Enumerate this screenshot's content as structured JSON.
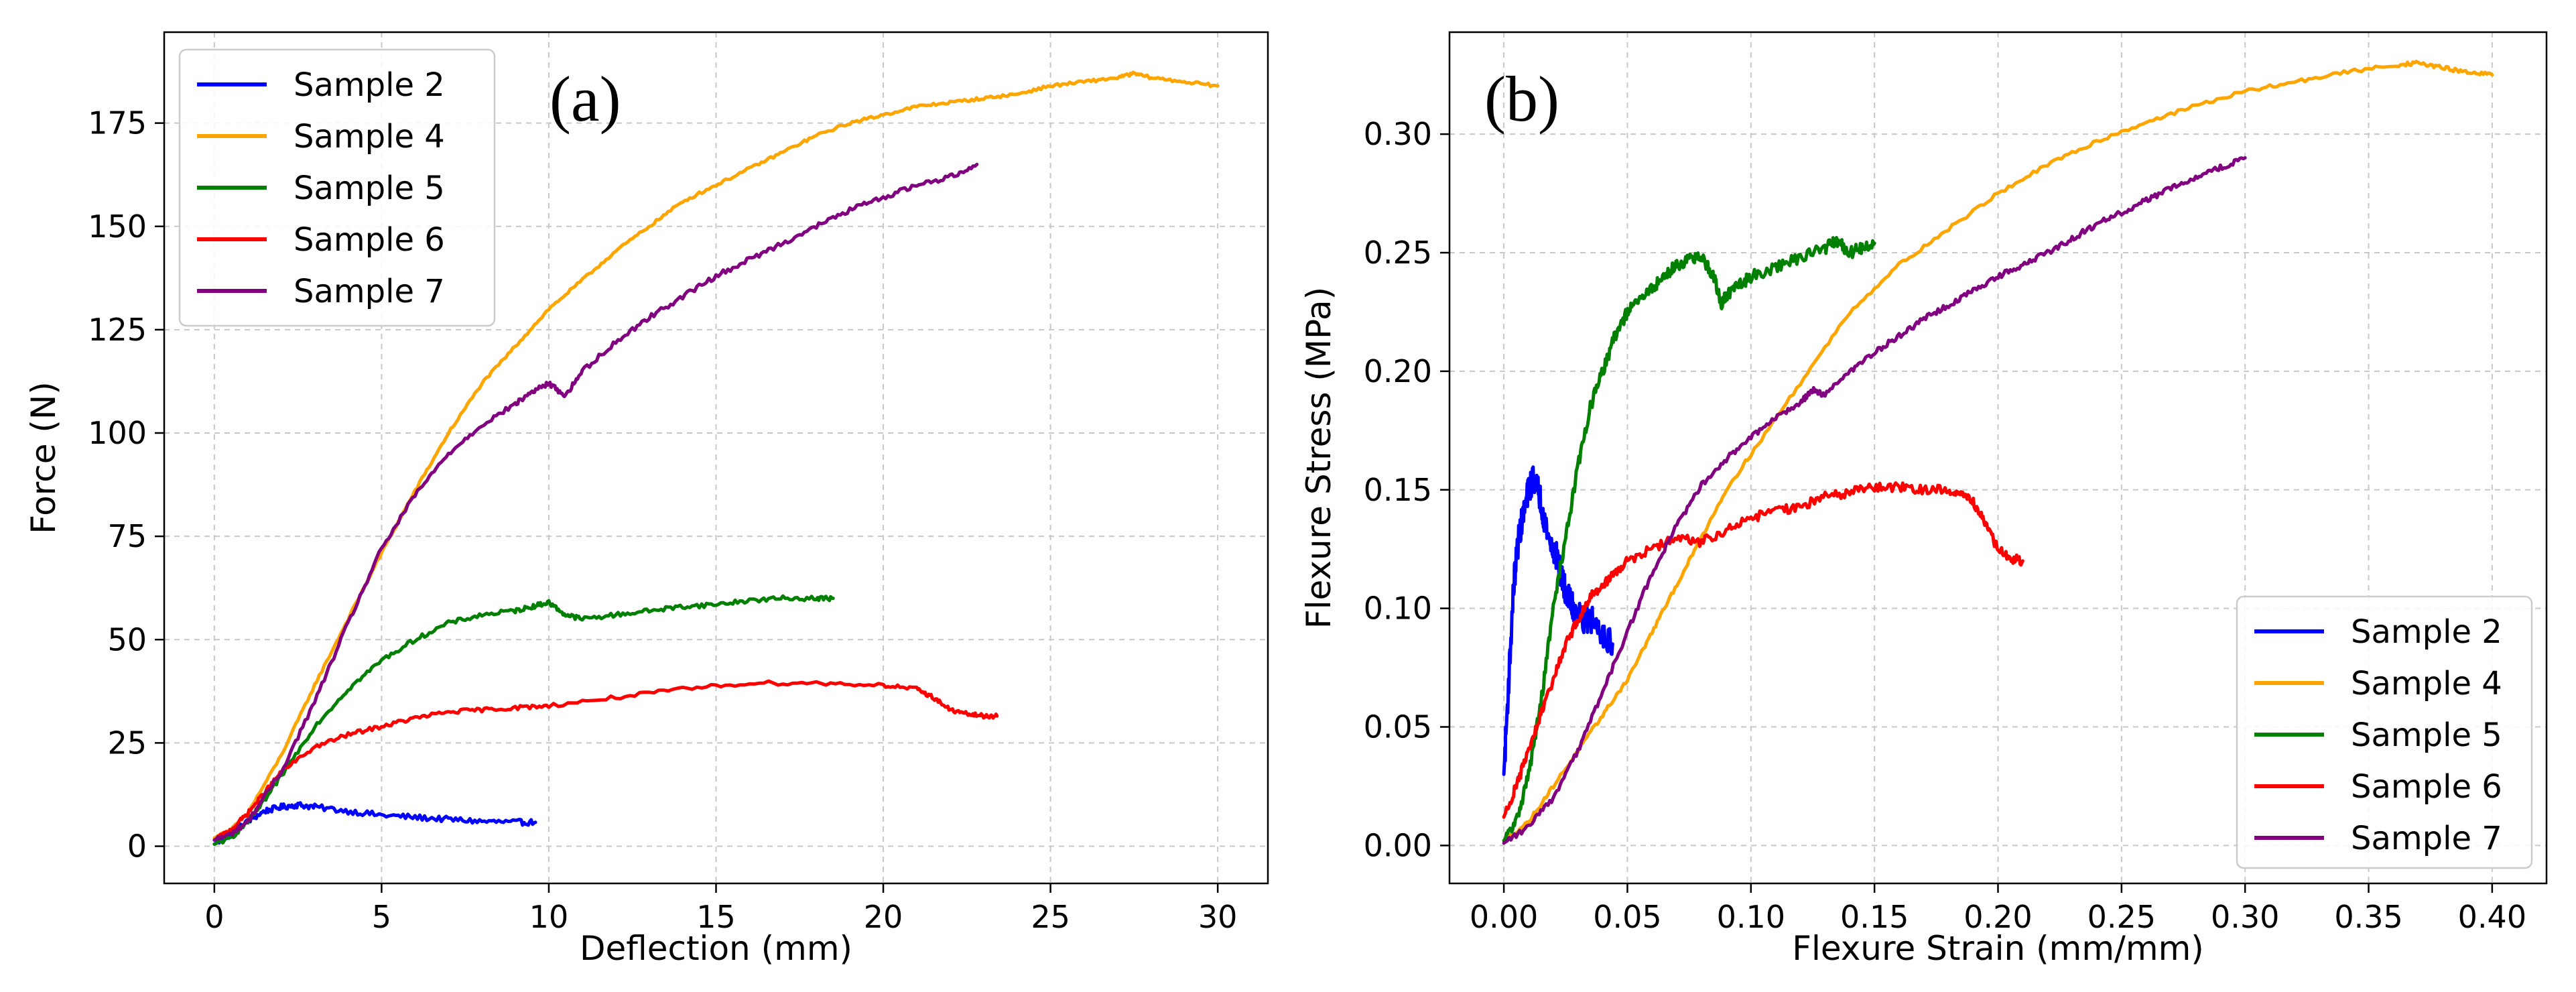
{
  "chart_data": [
    {
      "type": "line",
      "tag": "(a)",
      "xlabel": "Deflection (mm)",
      "ylabel": "Force (N)",
      "xlim": [
        -1.5,
        31.5
      ],
      "ylim": [
        -9,
        197
      ],
      "xticks": [
        0,
        5,
        10,
        15,
        20,
        25,
        30
      ],
      "yticks": [
        0,
        25,
        50,
        75,
        100,
        125,
        150,
        175
      ],
      "xtick_labels": [
        "0",
        "5",
        "10",
        "15",
        "20",
        "25",
        "30"
      ],
      "ytick_labels": [
        "0",
        "25",
        "50",
        "75",
        "100",
        "125",
        "150",
        "175"
      ],
      "grid": true,
      "legend_position": "top-left",
      "series": [
        {
          "name": "Sample 2",
          "color": "#0000ff",
          "noise": 0.7,
          "x": [
            0,
            0.5,
            1,
            1.5,
            2,
            2.5,
            3,
            4,
            5,
            6,
            7,
            8,
            9,
            9.6
          ],
          "y": [
            0.5,
            3,
            6,
            8.5,
            9.5,
            10,
            9.5,
            8.5,
            7.5,
            7,
            6.5,
            6,
            5.8,
            5.8
          ]
        },
        {
          "name": "Sample 4",
          "color": "#ffa500",
          "noise": 0.35,
          "x": [
            0,
            0.5,
            1,
            2,
            3,
            4,
            5,
            6,
            7,
            8,
            9,
            10,
            11,
            12,
            13,
            14,
            15,
            16,
            17,
            18,
            19,
            20,
            21,
            22,
            23,
            24,
            25,
            26,
            27,
            27.5,
            28,
            29,
            30
          ],
          "y": [
            2,
            4,
            8,
            22,
            39,
            55,
            71,
            86,
            100,
            112,
            121,
            130,
            137,
            144,
            150,
            156,
            160,
            164,
            168,
            172,
            175,
            177,
            179,
            180,
            181,
            182,
            184,
            185,
            186,
            187,
            186,
            185,
            184
          ]
        },
        {
          "name": "Sample 5",
          "color": "#008000",
          "noise": 0.55,
          "x": [
            0,
            0.5,
            1,
            1.5,
            2,
            3,
            4,
            5,
            6,
            7,
            8,
            9,
            9.5,
            10,
            10.5,
            11,
            12,
            13,
            14,
            15,
            16,
            17,
            18,
            18.5
          ],
          "y": [
            0.5,
            2,
            6,
            11,
            17,
            29,
            38,
            45,
            50,
            54,
            56,
            57,
            58,
            59,
            56,
            55,
            56,
            57,
            58,
            58.5,
            59.5,
            60,
            60,
            60
          ]
        },
        {
          "name": "Sample 6",
          "color": "#ff0000",
          "noise": 0.5,
          "x": [
            0,
            0.5,
            1,
            1.5,
            2,
            3,
            4,
            5,
            6,
            7,
            8,
            9,
            10,
            12,
            14,
            16,
            18,
            20,
            21,
            21.5,
            22,
            22.5,
            23,
            23.4
          ],
          "y": [
            1.5,
            4,
            8,
            13,
            18,
            24,
            27,
            29,
            31,
            32.5,
            33,
            33.5,
            34,
            36,
            38,
            39.5,
            39.5,
            39,
            38,
            36,
            33,
            32,
            31.5,
            31.5
          ]
        },
        {
          "name": "Sample 7",
          "color": "#800080",
          "noise": 0.6,
          "x": [
            0,
            0.5,
            1,
            2,
            3,
            4,
            5,
            6,
            7,
            8,
            9,
            9.5,
            10,
            10.5,
            11,
            12,
            13,
            14,
            15,
            16,
            17,
            18,
            19,
            20,
            21,
            22,
            22.8
          ],
          "y": [
            1.5,
            3,
            6,
            18,
            35,
            54,
            72,
            85,
            95,
            102,
            107,
            110,
            112,
            109,
            115,
            122,
            128,
            133,
            138,
            142,
            146,
            150,
            154,
            157,
            160,
            162,
            165
          ]
        }
      ]
    },
    {
      "type": "line",
      "tag": "(b)",
      "xlabel": "Flexure Strain (mm/mm)",
      "ylabel": "Flexure Stress (MPa)",
      "xlim": [
        -0.022,
        0.422
      ],
      "ylim": [
        -0.016,
        0.343
      ],
      "xticks": [
        0.0,
        0.05,
        0.1,
        0.15,
        0.2,
        0.25,
        0.3,
        0.35,
        0.4
      ],
      "yticks": [
        0.0,
        0.05,
        0.1,
        0.15,
        0.2,
        0.25,
        0.3
      ],
      "xtick_labels": [
        "0.00",
        "0.05",
        "0.10",
        "0.15",
        "0.20",
        "0.25",
        "0.30",
        "0.35",
        "0.40"
      ],
      "ytick_labels": [
        "0.00",
        "0.05",
        "0.10",
        "0.15",
        "0.20",
        "0.25",
        "0.30"
      ],
      "grid": true,
      "legend_position": "bottom-right",
      "series": [
        {
          "name": "Sample 2",
          "color": "#0000ff",
          "noise": 0.006,
          "x": [
            0.0,
            0.002,
            0.004,
            0.006,
            0.008,
            0.01,
            0.012,
            0.014,
            0.016,
            0.018,
            0.02,
            0.022,
            0.024,
            0.026,
            0.028,
            0.03,
            0.033,
            0.036,
            0.04,
            0.044
          ],
          "y": [
            0.03,
            0.07,
            0.11,
            0.13,
            0.14,
            0.15,
            0.155,
            0.15,
            0.14,
            0.13,
            0.125,
            0.12,
            0.11,
            0.105,
            0.1,
            0.098,
            0.095,
            0.095,
            0.09,
            0.085
          ]
        },
        {
          "name": "Sample 4",
          "color": "#ffa500",
          "noise": 0.0008,
          "x": [
            0.0,
            0.01,
            0.02,
            0.03,
            0.04,
            0.05,
            0.06,
            0.07,
            0.08,
            0.09,
            0.1,
            0.12,
            0.14,
            0.16,
            0.18,
            0.2,
            0.22,
            0.24,
            0.26,
            0.28,
            0.3,
            0.32,
            0.34,
            0.36,
            0.37,
            0.38,
            0.39,
            0.4
          ],
          "y": [
            0.002,
            0.01,
            0.025,
            0.04,
            0.055,
            0.07,
            0.09,
            0.11,
            0.13,
            0.15,
            0.165,
            0.195,
            0.225,
            0.245,
            0.26,
            0.275,
            0.287,
            0.297,
            0.305,
            0.312,
            0.318,
            0.322,
            0.326,
            0.329,
            0.33,
            0.328,
            0.326,
            0.325
          ]
        },
        {
          "name": "Sample 5",
          "color": "#008000",
          "noise": 0.0025,
          "x": [
            0.0,
            0.005,
            0.01,
            0.015,
            0.02,
            0.025,
            0.03,
            0.035,
            0.04,
            0.045,
            0.05,
            0.055,
            0.06,
            0.065,
            0.07,
            0.075,
            0.08,
            0.085,
            0.088,
            0.09,
            0.095,
            0.1,
            0.11,
            0.12,
            0.13,
            0.135,
            0.14,
            0.145,
            0.15
          ],
          "y": [
            0.002,
            0.01,
            0.03,
            0.06,
            0.1,
            0.13,
            0.16,
            0.185,
            0.2,
            0.215,
            0.225,
            0.23,
            0.235,
            0.24,
            0.245,
            0.247,
            0.248,
            0.24,
            0.228,
            0.232,
            0.236,
            0.24,
            0.244,
            0.248,
            0.252,
            0.255,
            0.25,
            0.252,
            0.254
          ]
        },
        {
          "name": "Sample 6",
          "color": "#ff0000",
          "noise": 0.002,
          "x": [
            0.0,
            0.005,
            0.01,
            0.015,
            0.02,
            0.025,
            0.03,
            0.035,
            0.04,
            0.045,
            0.05,
            0.06,
            0.07,
            0.08,
            0.09,
            0.1,
            0.11,
            0.12,
            0.13,
            0.14,
            0.15,
            0.16,
            0.17,
            0.18,
            0.185,
            0.19,
            0.195,
            0.2,
            0.205,
            0.21
          ],
          "y": [
            0.012,
            0.025,
            0.04,
            0.055,
            0.07,
            0.085,
            0.095,
            0.105,
            0.11,
            0.115,
            0.12,
            0.125,
            0.13,
            0.128,
            0.133,
            0.138,
            0.141,
            0.143,
            0.147,
            0.149,
            0.151,
            0.151,
            0.15,
            0.15,
            0.148,
            0.145,
            0.135,
            0.125,
            0.121,
            0.12
          ]
        },
        {
          "name": "Sample 7",
          "color": "#800080",
          "noise": 0.0012,
          "x": [
            0.0,
            0.01,
            0.02,
            0.03,
            0.04,
            0.05,
            0.06,
            0.07,
            0.08,
            0.09,
            0.1,
            0.11,
            0.12,
            0.125,
            0.13,
            0.14,
            0.15,
            0.16,
            0.17,
            0.18,
            0.19,
            0.2,
            0.21,
            0.22,
            0.23,
            0.24,
            0.25,
            0.26,
            0.27,
            0.28,
            0.29,
            0.3
          ],
          "y": [
            0.001,
            0.008,
            0.02,
            0.04,
            0.065,
            0.09,
            0.115,
            0.135,
            0.152,
            0.163,
            0.172,
            0.18,
            0.187,
            0.192,
            0.19,
            0.2,
            0.208,
            0.215,
            0.222,
            0.228,
            0.234,
            0.24,
            0.245,
            0.25,
            0.256,
            0.262,
            0.267,
            0.272,
            0.277,
            0.282,
            0.286,
            0.29
          ]
        }
      ]
    }
  ]
}
